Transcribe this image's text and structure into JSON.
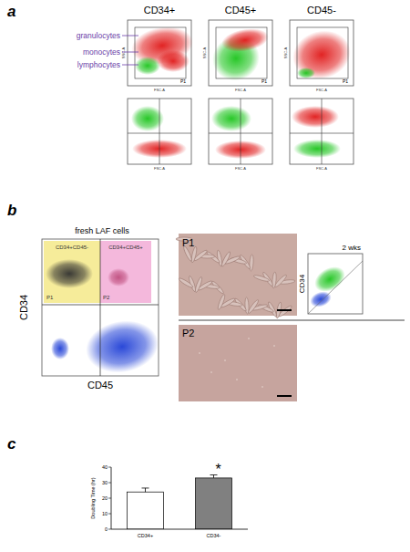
{
  "panel_labels": [
    "a",
    "b",
    "c"
  ],
  "panel_a": {
    "columns": [
      "CD34+",
      "CD45+",
      "CD45-"
    ],
    "populations": [
      "granulocytes",
      "monocytes",
      "lymphocytes"
    ],
    "gate": "P1",
    "x_axis": "FSC-A",
    "y_axis": "SSC-A"
  },
  "panel_b": {
    "plot_title": "fresh LAF cells",
    "gates": [
      {
        "name": "P1",
        "label": "CD34+CD45-"
      },
      {
        "name": "P2",
        "label": "CD34+CD45+"
      }
    ],
    "x_label": "CD45",
    "y_label": "CD34",
    "images": [
      "P1",
      "P2"
    ],
    "culture_time": "2 wks",
    "culture_y_label": "CD34"
  },
  "chart_data": {
    "type": "bar",
    "y_label": "Doubling Time (hr)",
    "categories": [
      "CD34+",
      "CD34-"
    ],
    "values": [
      24,
      33
    ],
    "errors": [
      2.5,
      2
    ],
    "colors": [
      "#ffffff",
      "#808080"
    ],
    "ylim": [
      0,
      40
    ],
    "yticks": [
      0,
      10,
      20,
      30,
      40
    ],
    "annotations": [
      {
        "category": 1,
        "text": "*"
      }
    ]
  }
}
